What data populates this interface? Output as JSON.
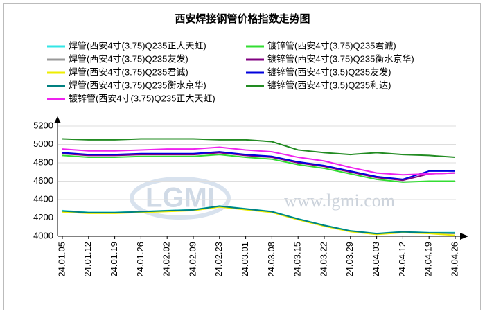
{
  "chart_data": {
    "type": "line",
    "title": "西安焊接钢管价格指数走势图",
    "watermark": "www.lgmi.com",
    "logo": "LGMI",
    "categories": [
      "24.01.05",
      "24.01.12",
      "24.01.19",
      "24.01.26",
      "24.02.02",
      "24.02.09",
      "24.02.23",
      "24.03.01",
      "24.03.08",
      "24.03.15",
      "24.03.22",
      "24.03.29",
      "24.04.03",
      "24.04.12",
      "24.04.19",
      "24.04.26"
    ],
    "ylim": [
      4000,
      5200
    ],
    "yticks": [
      4000,
      4200,
      4400,
      4600,
      4800,
      5000,
      5200
    ],
    "grid": true,
    "series": [
      {
        "name": "焊管(西安4寸(3.75)Q235正大天虹)",
        "color": "#33e6e6",
        "values": [
          4280,
          4260,
          4260,
          4270,
          4280,
          4290,
          4330,
          4300,
          4270,
          4190,
          4120,
          4060,
          4030,
          4050,
          4040,
          4040
        ]
      },
      {
        "name": "镀锌管(西安4寸(3.75)Q235君诚)",
        "color": "#33dd33",
        "values": [
          4880,
          4860,
          4860,
          4870,
          4870,
          4870,
          4890,
          4860,
          4840,
          4780,
          4740,
          4680,
          4620,
          4590,
          4600,
          4600
        ]
      },
      {
        "name": "焊管(西安4寸(3.75)Q235友发)",
        "color": "#999999",
        "values": [
          4270,
          4255,
          4255,
          4265,
          4275,
          4285,
          4325,
          4295,
          4265,
          4185,
          4115,
          4055,
          4025,
          4045,
          4035,
          4030
        ]
      },
      {
        "name": "镀锌管(西安4寸(3.75)Q235衡水京华)",
        "color": "#800080",
        "values": [
          4900,
          4880,
          4880,
          4890,
          4890,
          4890,
          4910,
          4880,
          4860,
          4800,
          4760,
          4700,
          4640,
          4610,
          4680,
          4690
        ]
      },
      {
        "name": "焊管(西安4寸(3.75)Q235君诚)",
        "color": "#eeee00",
        "values": [
          4265,
          4250,
          4250,
          4260,
          4270,
          4280,
          4320,
          4290,
          4260,
          4180,
          4110,
          4050,
          4020,
          4040,
          4030,
          4010
        ]
      },
      {
        "name": "镀锌管(西安4寸(3.5)Q235友发)",
        "color": "#0000dd",
        "values": [
          4910,
          4890,
          4890,
          4900,
          4900,
          4900,
          4920,
          4890,
          4870,
          4810,
          4770,
          4710,
          4650,
          4620,
          4710,
          4710
        ]
      },
      {
        "name": "焊管(西安4寸(3.75)Q235衡水京华)",
        "color": "#008080",
        "values": [
          4275,
          4258,
          4258,
          4268,
          4278,
          4288,
          4328,
          4298,
          4268,
          4188,
          4118,
          4058,
          4028,
          4048,
          4038,
          4035
        ]
      },
      {
        "name": "镀锌管(西安4寸(3.5)Q235利达)",
        "color": "#228b22",
        "values": [
          5060,
          5050,
          5050,
          5060,
          5060,
          5060,
          5050,
          5050,
          5030,
          4940,
          4910,
          4890,
          4910,
          4890,
          4880,
          4860
        ]
      },
      {
        "name": "镀锌管(西安4寸(3.75)Q235正大天虹)",
        "color": "#ee22ee",
        "values": [
          4950,
          4930,
          4930,
          4940,
          4950,
          4950,
          4970,
          4940,
          4920,
          4860,
          4820,
          4750,
          4690,
          4670,
          4680,
          4690
        ]
      }
    ]
  }
}
